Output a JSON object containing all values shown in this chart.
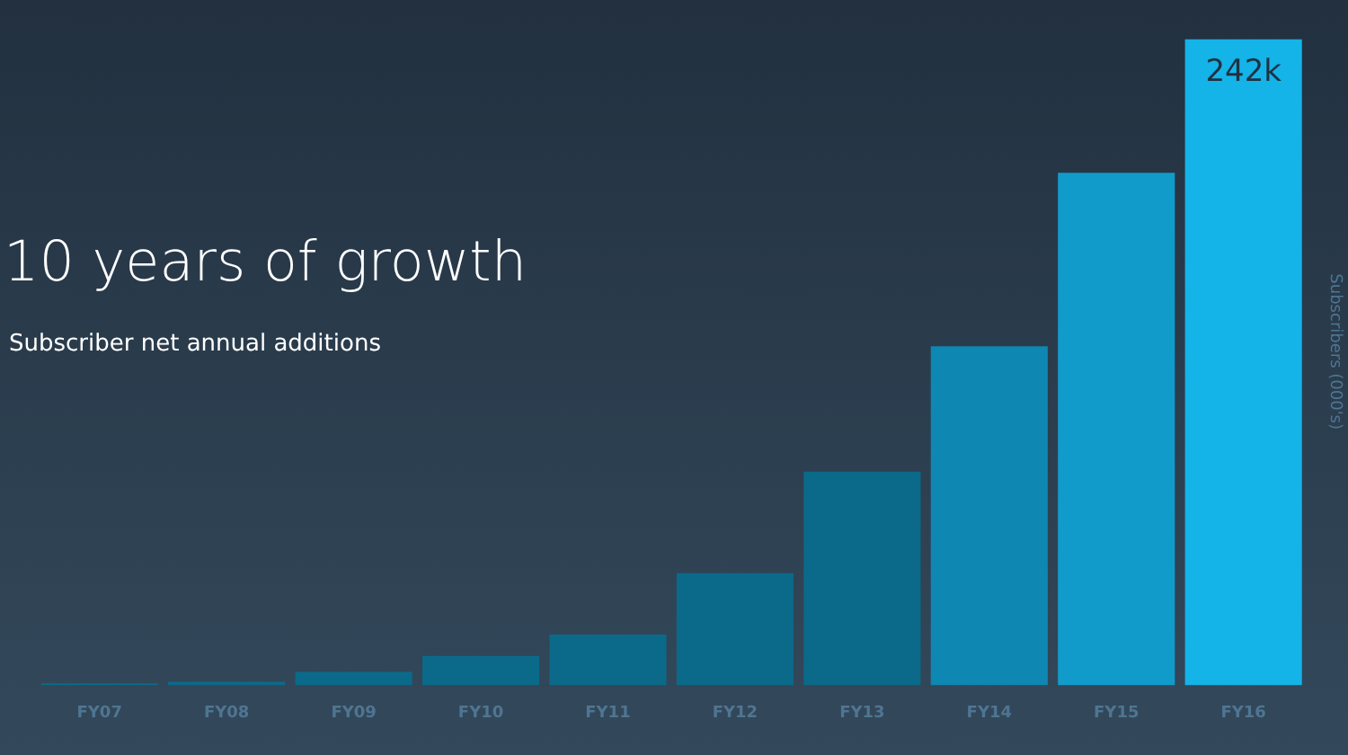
{
  "chart_data": {
    "type": "bar",
    "title": "10 years of growth",
    "subtitle": "Subscriber net annual additions",
    "ylabel": "Subscribers (000's)",
    "categories": [
      "FY07",
      "FY08",
      "FY09",
      "FY10",
      "FY11",
      "FY12",
      "FY13",
      "FY14",
      "FY15",
      "FY16"
    ],
    "values": [
      0.7,
      1.3,
      5,
      11,
      19,
      42,
      80,
      127,
      192,
      242
    ],
    "colors": [
      "#0b6a8a",
      "#0b6a8a",
      "#0b6a8a",
      "#0b6a8a",
      "#0b6a8a",
      "#0b6a8a",
      "#0b6a8a",
      "#0e87b3",
      "#109bcb",
      "#14b3e8"
    ],
    "value_labels": [
      null,
      null,
      null,
      null,
      null,
      null,
      null,
      null,
      null,
      "242k"
    ],
    "grid": false,
    "legend": false
  }
}
